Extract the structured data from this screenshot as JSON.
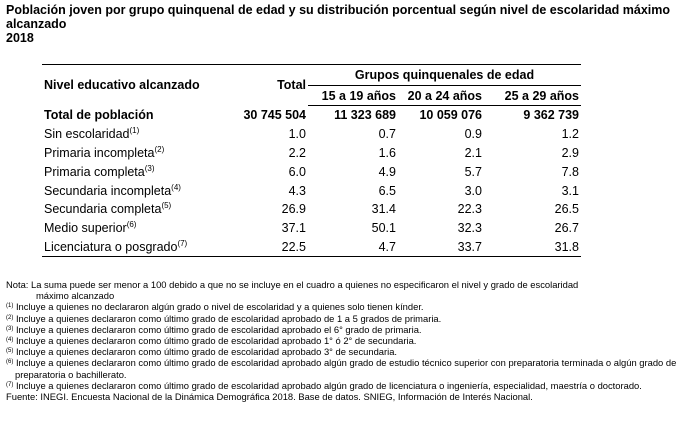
{
  "title": {
    "line1": "Población joven por grupo quinquenal de edad y su distribución porcentual según nivel de escolaridad máximo alcanzado",
    "line2": "2018"
  },
  "table": {
    "col_label": "Nivel educativo alcanzado",
    "col_total": "Total",
    "group_header": "Grupos quinquenales de edad",
    "groups": [
      "15 a 19 años",
      "20 a 24 años",
      "25 a 29 años"
    ],
    "rows": [
      {
        "label": "Total de población",
        "note": "",
        "values": [
          "30 745 504",
          "11 323 689",
          "10 059 076",
          "9 362 739"
        ]
      },
      {
        "label": "Sin escolaridad",
        "note": "(1)",
        "values": [
          "1.0",
          "0.7",
          "0.9",
          "1.2"
        ]
      },
      {
        "label": "Primaria incompleta",
        "note": "(2)",
        "values": [
          "2.2",
          "1.6",
          "2.1",
          "2.9"
        ]
      },
      {
        "label": "Primaria completa",
        "note": "(3)",
        "values": [
          "6.0",
          "4.9",
          "5.7",
          "7.8"
        ]
      },
      {
        "label": "Secundaria incompleta",
        "note": "(4)",
        "values": [
          "4.3",
          "6.5",
          "3.0",
          "3.1"
        ]
      },
      {
        "label": "Secundaria completa",
        "note": "(5)",
        "values": [
          "26.9",
          "31.4",
          "22.3",
          "26.5"
        ]
      },
      {
        "label": "Medio superior",
        "note": "(6)",
        "values": [
          "37.1",
          "50.1",
          "32.3",
          "26.7"
        ]
      },
      {
        "label": "Licenciatura o posgrado",
        "note": "(7)",
        "values": [
          "22.5",
          "4.7",
          "33.7",
          "31.8"
        ]
      }
    ]
  },
  "notes": {
    "nota": "Nota: La suma puede ser menor a 100 debido a que no se incluye en el cuadro a quienes no especificaron el nivel y grado de escolaridad",
    "nota_cont": "máximo alcanzado",
    "items": [
      {
        "mark": "(1)",
        "text": "Incluye a quienes no declararon algún grado o nivel de escolaridad y a quienes solo tienen kínder."
      },
      {
        "mark": "(2)",
        "text": "Incluye a quienes declararon como último grado de escolaridad aprobado de 1 a 5 grados de primaria."
      },
      {
        "mark": "(3)",
        "text": "Incluye a quienes declararon como último grado de escolaridad aprobado el 6° grado de primaria."
      },
      {
        "mark": "(4)",
        "text": "Incluye a quienes declararon como último grado de escolaridad aprobado 1° ó 2° de secundaria."
      },
      {
        "mark": "(5)",
        "text": "Incluye a quienes declararon como último grado de escolaridad aprobado 3° de secundaria."
      },
      {
        "mark": "(6)",
        "text": "Incluye a quienes declararon como último grado de escolaridad aprobado algún grado de estudio técnico superior con preparatoria terminada o algún grado de preparatoria o bachillerato."
      },
      {
        "mark": "(7)",
        "text": "Incluye a quienes declararon como último grado de escolaridad aprobado algún grado de licenciatura o ingeniería, especialidad, maestría o doctorado."
      }
    ],
    "fuente": "Fuente: INEGI. Encuesta Nacional de la Dinámica Demográfica 2018. Base de datos. SNIEG, Información de Interés Nacional."
  }
}
